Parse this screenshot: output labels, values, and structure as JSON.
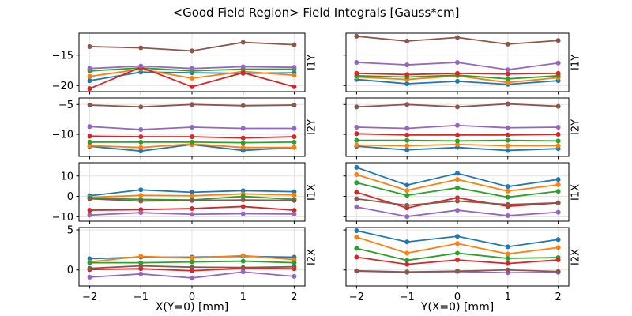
{
  "title": "<Good Field Region> Field Integrals [Gauss*cm]",
  "axes": {
    "xlabel_left": "X(Y=0) [mm]",
    "xlabel_right": "Y(X=0) [mm]"
  },
  "colors": {
    "blue": "#1f77b4",
    "orange": "#ff7f0e",
    "green": "#2ca02c",
    "red": "#d62728",
    "purple": "#9467bd",
    "brown": "#8c564b"
  },
  "chart_data": [
    {
      "type": "line",
      "row_label": "I1Y",
      "position": "left",
      "x": [
        -2,
        -1,
        0,
        1,
        2
      ],
      "xlim": [
        -2.21,
        2.21
      ],
      "ylim": [
        -21.0,
        -11.4
      ],
      "yticks": [
        -15,
        -20
      ],
      "xticks": [
        -2,
        -1,
        0,
        1,
        2
      ],
      "show_ytick_labels": true,
      "show_xtick_labels": false,
      "grid": true,
      "series": [
        {
          "name": "blue-line",
          "color": "#1f77b4",
          "values": [
            -19.2,
            -17.8,
            -17.9,
            -18.0,
            -17.9
          ]
        },
        {
          "name": "orange-line",
          "color": "#ff7f0e",
          "values": [
            -18.5,
            -17.3,
            -18.8,
            -17.7,
            -18.3
          ]
        },
        {
          "name": "green-line",
          "color": "#2ca02c",
          "values": [
            -17.6,
            -17.1,
            -17.6,
            -17.3,
            -17.3
          ]
        },
        {
          "name": "red-line",
          "color": "#d62728",
          "values": [
            -20.5,
            -17.0,
            -20.2,
            -17.9,
            -20.2
          ]
        },
        {
          "name": "purple-line",
          "color": "#9467bd",
          "values": [
            -17.2,
            -16.8,
            -17.2,
            -16.9,
            -17.0
          ]
        },
        {
          "name": "brown-line",
          "color": "#8c564b",
          "values": [
            -13.6,
            -13.8,
            -14.3,
            -12.9,
            -13.3
          ]
        }
      ]
    },
    {
      "type": "line",
      "row_label": "I1Y",
      "position": "right",
      "x": [
        -2,
        -1,
        0,
        1,
        2
      ],
      "xlim": [
        -2.21,
        2.21
      ],
      "ylim": [
        -21.0,
        -11.4
      ],
      "yticks": [
        -15,
        -20
      ],
      "xticks": [
        -2,
        -1,
        0,
        1,
        2
      ],
      "show_ytick_labels": false,
      "show_xtick_labels": false,
      "grid": true,
      "series": [
        {
          "name": "blue-line",
          "color": "#1f77b4",
          "values": [
            -19.0,
            -19.7,
            -19.3,
            -19.8,
            -19.2
          ]
        },
        {
          "name": "orange-line",
          "color": "#ff7f0e",
          "values": [
            -18.6,
            -19.0,
            -18.4,
            -19.5,
            -18.7
          ]
        },
        {
          "name": "green-line",
          "color": "#2ca02c",
          "values": [
            -18.4,
            -18.6,
            -18.3,
            -18.9,
            -18.4
          ]
        },
        {
          "name": "red-line",
          "color": "#d62728",
          "values": [
            -18.0,
            -18.2,
            -18.0,
            -18.1,
            -18.0
          ]
        },
        {
          "name": "purple-line",
          "color": "#9467bd",
          "values": [
            -16.2,
            -16.6,
            -16.2,
            -17.4,
            -16.3
          ]
        },
        {
          "name": "brown-line",
          "color": "#8c564b",
          "values": [
            -11.9,
            -12.7,
            -12.1,
            -13.2,
            -12.6
          ]
        }
      ]
    },
    {
      "type": "line",
      "row_label": "I2Y",
      "position": "left",
      "x": [
        -2,
        -1,
        0,
        1,
        2
      ],
      "xlim": [
        -2.21,
        2.21
      ],
      "ylim": [
        -13.7,
        -3.9
      ],
      "yticks": [
        -5,
        -10
      ],
      "xticks": [
        -2,
        -1,
        0,
        1,
        2
      ],
      "show_ytick_labels": true,
      "show_xtick_labels": false,
      "grid": true,
      "series": [
        {
          "name": "blue-line",
          "color": "#1f77b4",
          "values": [
            -12.0,
            -12.8,
            -11.7,
            -12.7,
            -12.2
          ]
        },
        {
          "name": "orange-line",
          "color": "#ff7f0e",
          "values": [
            -11.9,
            -12.2,
            -11.6,
            -12.2,
            -12.2
          ]
        },
        {
          "name": "green-line",
          "color": "#2ca02c",
          "values": [
            -11.3,
            -11.3,
            -11.3,
            -11.4,
            -11.3
          ]
        },
        {
          "name": "red-line",
          "color": "#d62728",
          "values": [
            -10.3,
            -10.4,
            -10.4,
            -10.6,
            -10.4
          ]
        },
        {
          "name": "purple-line",
          "color": "#9467bd",
          "values": [
            -8.7,
            -9.2,
            -8.8,
            -9.0,
            -9.0
          ]
        },
        {
          "name": "brown-line",
          "color": "#8c564b",
          "values": [
            -5.1,
            -5.4,
            -5.0,
            -5.2,
            -5.1
          ]
        }
      ]
    },
    {
      "type": "line",
      "row_label": "I2Y",
      "position": "right",
      "x": [
        -2,
        -1,
        0,
        1,
        2
      ],
      "xlim": [
        -2.21,
        2.21
      ],
      "ylim": [
        -13.7,
        -3.9
      ],
      "yticks": [
        -5,
        -10
      ],
      "xticks": [
        -2,
        -1,
        0,
        1,
        2
      ],
      "show_ytick_labels": false,
      "show_xtick_labels": false,
      "grid": true,
      "series": [
        {
          "name": "blue-line",
          "color": "#1f77b4",
          "values": [
            -12.0,
            -12.6,
            -12.2,
            -12.7,
            -12.4
          ]
        },
        {
          "name": "orange-line",
          "color": "#ff7f0e",
          "values": [
            -11.8,
            -11.9,
            -11.7,
            -11.9,
            -11.9
          ]
        },
        {
          "name": "green-line",
          "color": "#2ca02c",
          "values": [
            -11.0,
            -11.0,
            -11.1,
            -11.0,
            -11.1
          ]
        },
        {
          "name": "red-line",
          "color": "#d62728",
          "values": [
            -9.9,
            -10.1,
            -10.1,
            -10.1,
            -10.0
          ]
        },
        {
          "name": "purple-line",
          "color": "#9467bd",
          "values": [
            -8.8,
            -9.0,
            -8.5,
            -8.9,
            -8.8
          ]
        },
        {
          "name": "brown-line",
          "color": "#8c564b",
          "values": [
            -5.4,
            -5.0,
            -5.4,
            -4.9,
            -5.3
          ]
        }
      ]
    },
    {
      "type": "line",
      "row_label": "I1X",
      "position": "left",
      "x": [
        -2,
        -1,
        0,
        1,
        2
      ],
      "xlim": [
        -2.21,
        2.21
      ],
      "ylim": [
        -12.2,
        16.5
      ],
      "yticks": [
        10,
        0,
        -10
      ],
      "xticks": [
        -2,
        -1,
        0,
        1,
        2
      ],
      "show_ytick_labels": true,
      "show_xtick_labels": false,
      "grid": true,
      "series": [
        {
          "name": "blue-line",
          "color": "#1f77b4",
          "values": [
            0.3,
            3.2,
            2.0,
            2.8,
            2.3
          ]
        },
        {
          "name": "orange-line",
          "color": "#ff7f0e",
          "values": [
            -0.5,
            0.5,
            0.3,
            1.2,
            0.7
          ]
        },
        {
          "name": "green-line",
          "color": "#2ca02c",
          "values": [
            -0.8,
            -1.5,
            -1.8,
            0.0,
            -1.5
          ]
        },
        {
          "name": "red-line",
          "color": "#d62728",
          "values": [
            -6.8,
            -6.5,
            -6.0,
            -5.0,
            -6.8
          ]
        },
        {
          "name": "purple-line",
          "color": "#9467bd",
          "values": [
            -9.2,
            -8.0,
            -8.8,
            -8.5,
            -8.7
          ]
        },
        {
          "name": "brown-line",
          "color": "#8c564b",
          "values": [
            -1.2,
            -2.3,
            -2.0,
            -1.8,
            -2.0
          ]
        }
      ]
    },
    {
      "type": "line",
      "row_label": "I1X",
      "position": "right",
      "x": [
        -2,
        -1,
        0,
        1,
        2
      ],
      "xlim": [
        -2.21,
        2.21
      ],
      "ylim": [
        -12.2,
        16.5
      ],
      "yticks": [
        10,
        0,
        -10
      ],
      "xticks": [
        -2,
        -1,
        0,
        1,
        2
      ],
      "show_ytick_labels": false,
      "show_xtick_labels": false,
      "grid": true,
      "series": [
        {
          "name": "blue-line",
          "color": "#1f77b4",
          "values": [
            14.2,
            5.5,
            11.3,
            4.8,
            8.3
          ]
        },
        {
          "name": "orange-line",
          "color": "#ff7f0e",
          "values": [
            10.7,
            2.9,
            8.3,
            2.6,
            5.7
          ]
        },
        {
          "name": "green-line",
          "color": "#2ca02c",
          "values": [
            6.7,
            0.5,
            4.2,
            -0.4,
            2.5
          ]
        },
        {
          "name": "red-line",
          "color": "#d62728",
          "values": [
            2.0,
            -5.7,
            -0.7,
            -4.9,
            -3.2
          ]
        },
        {
          "name": "purple-line",
          "color": "#9467bd",
          "values": [
            -5.2,
            -9.9,
            -6.8,
            -9.5,
            -7.8
          ]
        },
        {
          "name": "brown-line",
          "color": "#8c564b",
          "values": [
            -1.2,
            -4.4,
            -2.3,
            -4.0,
            -3.2
          ]
        }
      ]
    },
    {
      "type": "line",
      "row_label": "I2X",
      "position": "left",
      "x": [
        -2,
        -1,
        0,
        1,
        2
      ],
      "xlim": [
        -2.21,
        2.21
      ],
      "ylim": [
        -2.0,
        5.3
      ],
      "yticks": [
        5,
        0
      ],
      "xticks": [
        -2,
        -1,
        0,
        1,
        2
      ],
      "show_ytick_labels": true,
      "show_xtick_labels": true,
      "grid": true,
      "series": [
        {
          "name": "blue-line",
          "color": "#1f77b4",
          "values": [
            1.4,
            1.6,
            1.6,
            1.7,
            1.6
          ]
        },
        {
          "name": "orange-line",
          "color": "#ff7f0e",
          "values": [
            1.0,
            1.7,
            1.5,
            1.8,
            1.3
          ]
        },
        {
          "name": "green-line",
          "color": "#2ca02c",
          "values": [
            0.9,
            0.9,
            1.0,
            1.1,
            0.9
          ]
        },
        {
          "name": "red-line",
          "color": "#d62728",
          "values": [
            0.05,
            0.15,
            -0.1,
            0.2,
            0.15
          ]
        },
        {
          "name": "purple-line",
          "color": "#9467bd",
          "values": [
            -0.9,
            -0.5,
            -1.0,
            -0.25,
            -0.8
          ]
        },
        {
          "name": "brown-line",
          "color": "#8c564b",
          "values": [
            0.2,
            0.5,
            0.35,
            0.3,
            0.4
          ]
        }
      ]
    },
    {
      "type": "line",
      "row_label": "I2X",
      "position": "right",
      "x": [
        -2,
        -1,
        0,
        1,
        2
      ],
      "xlim": [
        -2.21,
        2.21
      ],
      "ylim": [
        -2.0,
        5.3
      ],
      "yticks": [
        5,
        0
      ],
      "xticks": [
        -2,
        -1,
        0,
        1,
        2
      ],
      "show_ytick_labels": false,
      "show_xtick_labels": true,
      "grid": true,
      "series": [
        {
          "name": "blue-line",
          "color": "#1f77b4",
          "values": [
            4.9,
            3.5,
            4.2,
            2.9,
            3.8
          ]
        },
        {
          "name": "orange-line",
          "color": "#ff7f0e",
          "values": [
            4.1,
            2.1,
            3.3,
            2.0,
            2.8
          ]
        },
        {
          "name": "green-line",
          "color": "#2ca02c",
          "values": [
            2.7,
            1.2,
            2.1,
            1.45,
            1.55
          ]
        },
        {
          "name": "red-line",
          "color": "#d62728",
          "values": [
            1.6,
            0.7,
            1.25,
            0.8,
            1.25
          ]
        },
        {
          "name": "purple-line",
          "color": "#9467bd",
          "values": [
            -0.15,
            -0.3,
            -0.2,
            -0.35,
            -0.3
          ]
        },
        {
          "name": "brown-line",
          "color": "#8c564b",
          "values": [
            -0.1,
            -0.25,
            -0.15,
            0.0,
            -0.2
          ]
        }
      ]
    }
  ]
}
